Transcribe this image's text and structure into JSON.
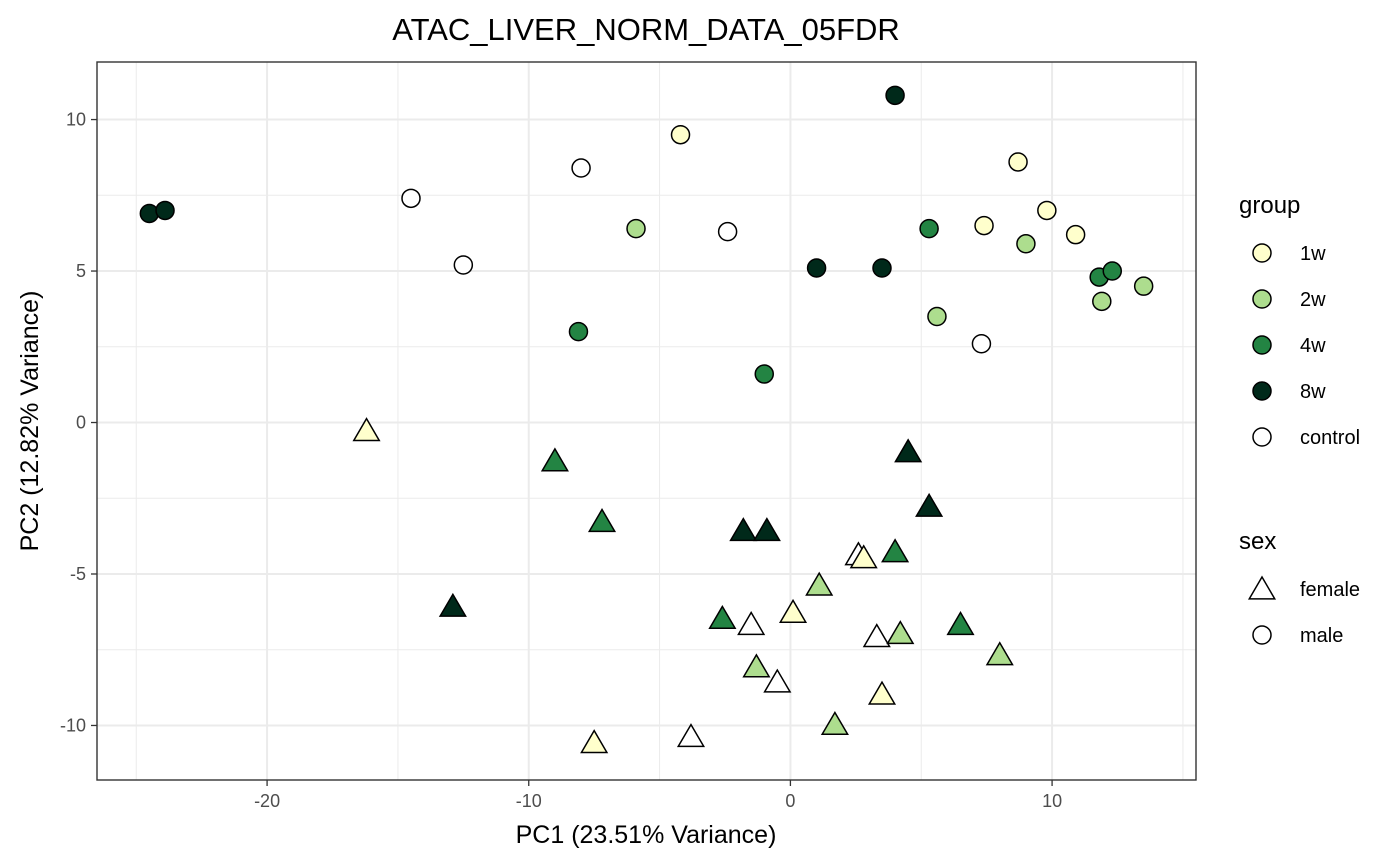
{
  "chart_data": {
    "type": "scatter",
    "title": "ATAC_LIVER_NORM_DATA_05FDR",
    "xlabel": "PC1 (23.51% Variance)",
    "ylabel": "PC2 (12.82% Variance)",
    "xlim": [
      -26.5,
      15.5
    ],
    "ylim": [
      -11.8,
      11.9
    ],
    "x_ticks": [
      -20,
      -10,
      0,
      10
    ],
    "y_ticks": [
      -10,
      -5,
      0,
      5,
      10
    ],
    "x_tick_labels": [
      "-20",
      "-10",
      "0",
      "10"
    ],
    "y_tick_labels": [
      "-10",
      "-5",
      "0",
      "5",
      "10"
    ],
    "grid": true,
    "legend_position": "right",
    "legends": [
      {
        "title": "group",
        "items": [
          {
            "label": "1w",
            "color": "#ffffcc",
            "shape": "circle"
          },
          {
            "label": "2w",
            "color": "#addd8e",
            "shape": "circle"
          },
          {
            "label": "4w",
            "color": "#238443",
            "shape": "circle"
          },
          {
            "label": "8w",
            "color": "#00291a",
            "shape": "circle"
          },
          {
            "label": "control",
            "color": "#ffffff",
            "shape": "circle"
          }
        ]
      },
      {
        "title": "sex",
        "items": [
          {
            "label": "female",
            "color": "#ffffff",
            "shape": "triangle"
          },
          {
            "label": "male",
            "color": "#ffffff",
            "shape": "circle"
          }
        ]
      }
    ],
    "group_colors": {
      "1w": "#ffffcc",
      "2w": "#addd8e",
      "4w": "#238443",
      "8w": "#00291a",
      "control": "#ffffff"
    },
    "points": [
      {
        "x": -24.5,
        "y": 6.9,
        "group": "8w",
        "sex": "male"
      },
      {
        "x": -23.9,
        "y": 7.0,
        "group": "8w",
        "sex": "male"
      },
      {
        "x": -14.5,
        "y": 7.4,
        "group": "control",
        "sex": "male"
      },
      {
        "x": -12.5,
        "y": 5.2,
        "group": "control",
        "sex": "male"
      },
      {
        "x": -8.0,
        "y": 8.4,
        "group": "control",
        "sex": "male"
      },
      {
        "x": -8.1,
        "y": 3.0,
        "group": "4w",
        "sex": "male"
      },
      {
        "x": -5.9,
        "y": 6.4,
        "group": "2w",
        "sex": "male"
      },
      {
        "x": -4.2,
        "y": 9.5,
        "group": "1w",
        "sex": "male"
      },
      {
        "x": -2.4,
        "y": 6.3,
        "group": "control",
        "sex": "male"
      },
      {
        "x": -1.0,
        "y": 1.6,
        "group": "4w",
        "sex": "male"
      },
      {
        "x": 1.0,
        "y": 5.1,
        "group": "8w",
        "sex": "male"
      },
      {
        "x": 3.5,
        "y": 5.1,
        "group": "8w",
        "sex": "male"
      },
      {
        "x": 4.0,
        "y": 10.8,
        "group": "8w",
        "sex": "male"
      },
      {
        "x": 5.3,
        "y": 6.4,
        "group": "4w",
        "sex": "male"
      },
      {
        "x": 5.6,
        "y": 3.5,
        "group": "2w",
        "sex": "male"
      },
      {
        "x": 7.3,
        "y": 2.6,
        "group": "control",
        "sex": "male"
      },
      {
        "x": 7.4,
        "y": 6.5,
        "group": "1w",
        "sex": "male"
      },
      {
        "x": 8.7,
        "y": 8.6,
        "group": "1w",
        "sex": "male"
      },
      {
        "x": 9.0,
        "y": 5.9,
        "group": "2w",
        "sex": "male"
      },
      {
        "x": 9.8,
        "y": 7.0,
        "group": "1w",
        "sex": "male"
      },
      {
        "x": 10.9,
        "y": 6.2,
        "group": "1w",
        "sex": "male"
      },
      {
        "x": 11.8,
        "y": 4.8,
        "group": "4w",
        "sex": "male"
      },
      {
        "x": 11.9,
        "y": 4.0,
        "group": "2w",
        "sex": "male"
      },
      {
        "x": 12.3,
        "y": 5.0,
        "group": "4w",
        "sex": "male"
      },
      {
        "x": 13.5,
        "y": 4.5,
        "group": "2w",
        "sex": "male"
      },
      {
        "x": -16.2,
        "y": -0.3,
        "group": "1w",
        "sex": "female"
      },
      {
        "x": -12.9,
        "y": -6.1,
        "group": "8w",
        "sex": "female"
      },
      {
        "x": -9.0,
        "y": -1.3,
        "group": "4w",
        "sex": "female"
      },
      {
        "x": -7.5,
        "y": -10.6,
        "group": "1w",
        "sex": "female"
      },
      {
        "x": -7.2,
        "y": -3.3,
        "group": "4w",
        "sex": "female"
      },
      {
        "x": -3.8,
        "y": -10.4,
        "group": "control",
        "sex": "female"
      },
      {
        "x": -2.6,
        "y": -6.5,
        "group": "4w",
        "sex": "female"
      },
      {
        "x": -1.8,
        "y": -3.6,
        "group": "8w",
        "sex": "female"
      },
      {
        "x": -1.5,
        "y": -6.7,
        "group": "control",
        "sex": "female"
      },
      {
        "x": -1.3,
        "y": -8.1,
        "group": "2w",
        "sex": "female"
      },
      {
        "x": -0.9,
        "y": -3.6,
        "group": "8w",
        "sex": "female"
      },
      {
        "x": -0.5,
        "y": -8.6,
        "group": "control",
        "sex": "female"
      },
      {
        "x": 0.1,
        "y": -6.3,
        "group": "1w",
        "sex": "female"
      },
      {
        "x": 1.1,
        "y": -5.4,
        "group": "2w",
        "sex": "female"
      },
      {
        "x": 1.7,
        "y": -10.0,
        "group": "2w",
        "sex": "female"
      },
      {
        "x": 2.6,
        "y": -4.4,
        "group": "control",
        "sex": "female"
      },
      {
        "x": 2.8,
        "y": -4.5,
        "group": "1w",
        "sex": "female"
      },
      {
        "x": 3.3,
        "y": -7.1,
        "group": "control",
        "sex": "female"
      },
      {
        "x": 3.5,
        "y": -9.0,
        "group": "1w",
        "sex": "female"
      },
      {
        "x": 4.0,
        "y": -4.3,
        "group": "4w",
        "sex": "female"
      },
      {
        "x": 4.2,
        "y": -7.0,
        "group": "2w",
        "sex": "female"
      },
      {
        "x": 4.5,
        "y": -1.0,
        "group": "8w",
        "sex": "female"
      },
      {
        "x": 5.3,
        "y": -2.8,
        "group": "8w",
        "sex": "female"
      },
      {
        "x": 6.5,
        "y": -6.7,
        "group": "4w",
        "sex": "female"
      },
      {
        "x": 8.0,
        "y": -7.7,
        "group": "2w",
        "sex": "female"
      }
    ]
  }
}
